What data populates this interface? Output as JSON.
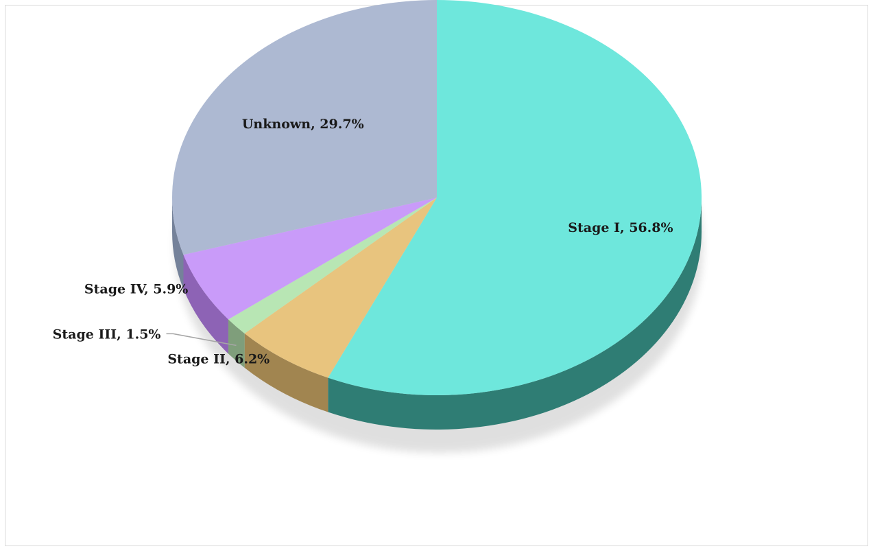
{
  "chart_data": {
    "type": "pie",
    "style": "3d",
    "title": "",
    "legend": "none",
    "categories": [
      "Stage I",
      "Stage II",
      "Stage III",
      "Stage IV",
      "Unknown"
    ],
    "values": [
      56.8,
      6.2,
      1.5,
      5.9,
      29.7
    ],
    "unit": "%",
    "labels": [
      "Stage I, 56.8%",
      "Stage II, 6.2%",
      "Stage III, 1.5%",
      "Stage IV, 5.9%",
      "Unknown, 29.7%"
    ],
    "colors": [
      "#6ee7dc",
      "#e8c47e",
      "#b8e6b4",
      "#c99bf9",
      "#adb9d2"
    ],
    "side_colors": [
      "#2f7d74",
      "#a18550",
      "#7f9e7b",
      "#8d63b5",
      "#75829a"
    ]
  }
}
